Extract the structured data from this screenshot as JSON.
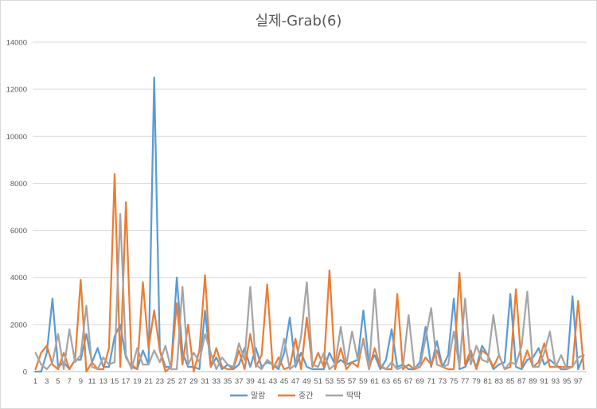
{
  "chart_data": {
    "type": "line",
    "title": "실제-Grab(6)",
    "xlabel": "",
    "ylabel": "",
    "ylim": [
      0,
      14000
    ],
    "yticks": [
      0,
      2000,
      4000,
      6000,
      8000,
      10000,
      12000,
      14000
    ],
    "grid": true,
    "legend_position": "bottom",
    "x": [
      1,
      2,
      3,
      4,
      5,
      6,
      7,
      8,
      9,
      10,
      11,
      12,
      13,
      14,
      15,
      16,
      17,
      18,
      19,
      20,
      21,
      22,
      23,
      24,
      25,
      26,
      27,
      28,
      29,
      30,
      31,
      32,
      33,
      34,
      35,
      36,
      37,
      38,
      39,
      40,
      41,
      42,
      43,
      44,
      45,
      46,
      47,
      48,
      49,
      50,
      51,
      52,
      53,
      54,
      55,
      56,
      57,
      58,
      59,
      60,
      61,
      62,
      63,
      64,
      65,
      66,
      67,
      68,
      69,
      70,
      71,
      72,
      73,
      74,
      75,
      76,
      77,
      78,
      79,
      80,
      81,
      82,
      83,
      84,
      85,
      86,
      87,
      88,
      89,
      90,
      91,
      92,
      93,
      94,
      95,
      96,
      97,
      98
    ],
    "xtick_labels": [
      "1",
      "3",
      "5",
      "7",
      "9",
      "11",
      "13",
      "15",
      "17",
      "19",
      "21",
      "23",
      "25",
      "27",
      "29",
      "31",
      "33",
      "35",
      "37",
      "39",
      "41",
      "43",
      "45",
      "47",
      "49",
      "51",
      "53",
      "55",
      "57",
      "59",
      "61",
      "63",
      "65",
      "67",
      "69",
      "71",
      "73",
      "75",
      "77",
      "79",
      "81",
      "83",
      "85",
      "87",
      "89",
      "91",
      "93",
      "95",
      "97"
    ],
    "series": [
      {
        "name": "말랑",
        "color": "#5B9BD5",
        "values": [
          0,
          0,
          800,
          3100,
          200,
          400,
          100,
          500,
          500,
          1600,
          400,
          1000,
          200,
          200,
          1500,
          2000,
          600,
          200,
          100,
          900,
          300,
          12500,
          900,
          200,
          200,
          4000,
          800,
          200,
          200,
          100,
          2600,
          200,
          600,
          100,
          300,
          100,
          300,
          1000,
          200,
          1000,
          200,
          400,
          300,
          100,
          800,
          2300,
          200,
          800,
          200,
          100,
          100,
          100,
          800,
          300,
          500,
          300,
          400,
          500,
          2600,
          300,
          700,
          100,
          500,
          1800,
          200,
          300,
          100,
          100,
          400,
          1900,
          200,
          1300,
          200,
          700,
          3100,
          100,
          200,
          700,
          200,
          1100,
          700,
          100,
          300,
          400,
          3300,
          200,
          100,
          500,
          600,
          1000,
          300,
          500,
          300,
          100,
          100,
          3200,
          100,
          700
        ]
      },
      {
        "name": "중간",
        "color": "#ED7D31",
        "values": [
          100,
          800,
          1100,
          300,
          100,
          800,
          100,
          500,
          3900,
          0,
          400,
          100,
          100,
          1000,
          8400,
          200,
          7200,
          300,
          100,
          3800,
          1000,
          2600,
          900,
          0,
          200,
          2900,
          300,
          2000,
          0,
          900,
          4100,
          200,
          1000,
          200,
          100,
          100,
          900,
          100,
          1600,
          200,
          700,
          3700,
          100,
          600,
          100,
          200,
          1400,
          100,
          2300,
          200,
          800,
          200,
          4300,
          100,
          1000,
          100,
          400,
          200,
          1400,
          100,
          1000,
          200,
          100,
          100,
          3300,
          100,
          300,
          100,
          200,
          600,
          300,
          900,
          200,
          100,
          100,
          4200,
          300,
          900,
          100,
          900,
          700,
          200,
          700,
          100,
          200,
          3500,
          200,
          900,
          200,
          400,
          1200,
          200,
          200,
          200,
          200,
          200,
          3000,
          100
        ]
      },
      {
        "name": "딱딱",
        "color": "#A5A5A5",
        "values": [
          800,
          300,
          100,
          400,
          1600,
          100,
          1800,
          400,
          700,
          2800,
          200,
          100,
          600,
          300,
          400,
          6700,
          700,
          100,
          1000,
          300,
          300,
          900,
          400,
          1100,
          100,
          100,
          3600,
          300,
          800,
          400,
          1600,
          800,
          100,
          600,
          300,
          200,
          1200,
          500,
          3600,
          300,
          100,
          500,
          300,
          200,
          1400,
          100,
          300,
          1500,
          3800,
          300,
          200,
          800,
          100,
          300,
          1900,
          300,
          1700,
          500,
          1300,
          100,
          3500,
          300,
          100,
          400,
          100,
          200,
          2400,
          200,
          200,
          1400,
          2700,
          300,
          200,
          300,
          1700,
          200,
          3100,
          300,
          1100,
          500,
          400,
          2400,
          700,
          100,
          400,
          300,
          1100,
          3400,
          200,
          200,
          800,
          1700,
          200,
          700,
          100,
          200,
          600,
          700
        ]
      }
    ]
  }
}
